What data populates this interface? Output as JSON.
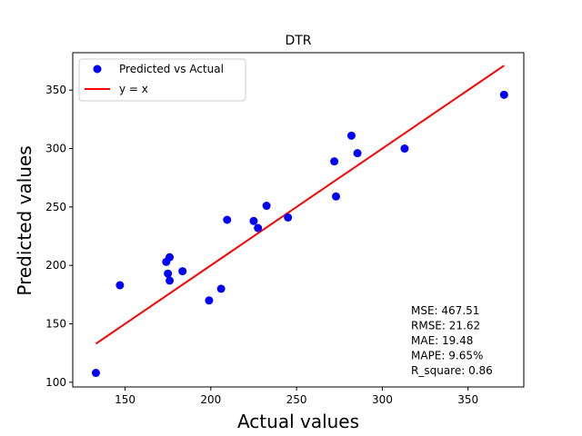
{
  "chart_data": {
    "type": "scatter",
    "title": "DTR",
    "xlabel": "Actual values",
    "ylabel": "Predicted values",
    "xlim": [
      119.5,
      382.5
    ],
    "ylim": [
      96,
      382
    ],
    "xticks": [
      150,
      200,
      250,
      300,
      350
    ],
    "yticks": [
      100,
      150,
      200,
      250,
      300,
      350
    ],
    "grid": false,
    "legend_position": "upper-left",
    "series": [
      {
        "name": "Predicted vs Actual",
        "kind": "scatter",
        "color": "#0000ff",
        "points": [
          {
            "x": 133,
            "y": 108
          },
          {
            "x": 147,
            "y": 183
          },
          {
            "x": 174,
            "y": 203
          },
          {
            "x": 175,
            "y": 193
          },
          {
            "x": 176,
            "y": 207
          },
          {
            "x": 176,
            "y": 187
          },
          {
            "x": 183.5,
            "y": 195
          },
          {
            "x": 199,
            "y": 170
          },
          {
            "x": 206,
            "y": 180
          },
          {
            "x": 209.5,
            "y": 239
          },
          {
            "x": 225,
            "y": 238
          },
          {
            "x": 227.5,
            "y": 232
          },
          {
            "x": 232.5,
            "y": 251
          },
          {
            "x": 245,
            "y": 241
          },
          {
            "x": 272,
            "y": 289
          },
          {
            "x": 273,
            "y": 259
          },
          {
            "x": 282,
            "y": 311
          },
          {
            "x": 285.5,
            "y": 296
          },
          {
            "x": 313,
            "y": 300
          },
          {
            "x": 371,
            "y": 346
          }
        ]
      },
      {
        "name": "y = x",
        "kind": "line",
        "color": "#ff0000",
        "points": [
          {
            "x": 133,
            "y": 133
          },
          {
            "x": 371,
            "y": 371
          }
        ]
      }
    ],
    "annotations": [
      "MSE: 467.51",
      "RMSE: 21.62",
      "MAE: 19.48",
      "MAPE: 9.65%",
      "R_square: 0.86"
    ]
  }
}
